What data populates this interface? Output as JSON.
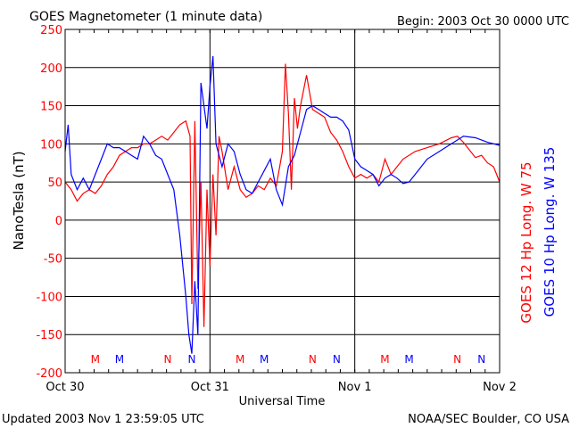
{
  "chart_data": {
    "type": "line",
    "title": "GOES Magnetometer (1 minute data)",
    "begin": "Begin:  2003 Oct 30 0000 UTC",
    "xlabel": "Universal Time",
    "ylabel": "NanoTesla (nT)",
    "ylim": [
      -200,
      250
    ],
    "xlim_hours": [
      0,
      72
    ],
    "yticks": [
      250,
      200,
      150,
      100,
      50,
      0,
      -50,
      -100,
      -150,
      -200
    ],
    "xticks": [
      {
        "h": 0,
        "label": "Oct 30"
      },
      {
        "h": 24,
        "label": "Oct 31"
      },
      {
        "h": 48,
        "label": "Nov 1"
      },
      {
        "h": 72,
        "label": "Nov 2"
      }
    ],
    "grid": true,
    "colors": {
      "goes12": "#ff0000",
      "goes10": "#0000ff",
      "axis_labels": "#ff0000"
    },
    "series": [
      {
        "name": "GOES 12 Hp",
        "legend": "GOES 12 Hp   Long. W 75",
        "color": "#ff0000",
        "points": [
          [
            0,
            50
          ],
          [
            1,
            40
          ],
          [
            2,
            25
          ],
          [
            3,
            35
          ],
          [
            4,
            40
          ],
          [
            5,
            35
          ],
          [
            6,
            45
          ],
          [
            7,
            60
          ],
          [
            8,
            70
          ],
          [
            9,
            85
          ],
          [
            10,
            90
          ],
          [
            11,
            95
          ],
          [
            12,
            95
          ],
          [
            13,
            100
          ],
          [
            14,
            100
          ],
          [
            15,
            105
          ],
          [
            16,
            110
          ],
          [
            17,
            105
          ],
          [
            18,
            115
          ],
          [
            19,
            125
          ],
          [
            20,
            130
          ],
          [
            20.7,
            110
          ],
          [
            21,
            -110
          ],
          [
            21.5,
            130
          ],
          [
            22,
            -90
          ],
          [
            22.5,
            50
          ],
          [
            23,
            -140
          ],
          [
            23.5,
            40
          ],
          [
            24,
            -60
          ],
          [
            24.5,
            60
          ],
          [
            25,
            -20
          ],
          [
            25.5,
            110
          ],
          [
            26,
            90
          ],
          [
            27,
            40
          ],
          [
            28,
            70
          ],
          [
            29,
            40
          ],
          [
            30,
            30
          ],
          [
            31,
            35
          ],
          [
            32,
            45
          ],
          [
            33,
            40
          ],
          [
            34,
            55
          ],
          [
            35,
            45
          ],
          [
            36,
            90
          ],
          [
            36.5,
            205
          ],
          [
            37,
            140
          ],
          [
            37.5,
            40
          ],
          [
            38,
            160
          ],
          [
            38.5,
            120
          ],
          [
            39,
            150
          ],
          [
            40,
            190
          ],
          [
            41,
            145
          ],
          [
            42,
            140
          ],
          [
            43,
            135
          ],
          [
            44,
            115
          ],
          [
            45,
            105
          ],
          [
            46,
            90
          ],
          [
            47,
            70
          ],
          [
            48,
            55
          ],
          [
            49,
            60
          ],
          [
            50,
            55
          ],
          [
            51,
            60
          ],
          [
            52,
            50
          ],
          [
            53,
            80
          ],
          [
            54,
            60
          ],
          [
            55,
            70
          ],
          [
            56,
            80
          ],
          [
            58,
            90
          ],
          [
            60,
            95
          ],
          [
            62,
            100
          ],
          [
            64,
            108
          ],
          [
            65,
            110
          ],
          [
            66,
            102
          ],
          [
            67,
            92
          ],
          [
            68,
            82
          ],
          [
            69,
            85
          ],
          [
            70,
            75
          ],
          [
            71,
            70
          ],
          [
            72,
            50
          ]
        ]
      },
      {
        "name": "GOES 10 Hp",
        "legend": "GOES 10 Hp   Long. W 135",
        "color": "#0000ff",
        "points": [
          [
            0,
            90
          ],
          [
            0.5,
            125
          ],
          [
            1,
            60
          ],
          [
            2,
            40
          ],
          [
            3,
            55
          ],
          [
            4,
            40
          ],
          [
            5,
            60
          ],
          [
            6,
            80
          ],
          [
            7,
            100
          ],
          [
            8,
            95
          ],
          [
            9,
            95
          ],
          [
            10,
            90
          ],
          [
            11,
            85
          ],
          [
            12,
            80
          ],
          [
            13,
            110
          ],
          [
            14,
            100
          ],
          [
            15,
            85
          ],
          [
            16,
            80
          ],
          [
            17,
            60
          ],
          [
            18,
            40
          ],
          [
            19,
            -20
          ],
          [
            20,
            -100
          ],
          [
            20.5,
            -150
          ],
          [
            21,
            -175
          ],
          [
            21.5,
            -80
          ],
          [
            22,
            -150
          ],
          [
            22.5,
            180
          ],
          [
            23,
            150
          ],
          [
            23.5,
            120
          ],
          [
            24,
            175
          ],
          [
            24.5,
            215
          ],
          [
            25,
            100
          ],
          [
            26,
            70
          ],
          [
            27,
            100
          ],
          [
            28,
            90
          ],
          [
            29,
            60
          ],
          [
            30,
            40
          ],
          [
            31,
            35
          ],
          [
            32,
            50
          ],
          [
            33,
            65
          ],
          [
            34,
            80
          ],
          [
            35,
            40
          ],
          [
            36,
            20
          ],
          [
            37,
            70
          ],
          [
            38,
            85
          ],
          [
            39,
            115
          ],
          [
            40,
            145
          ],
          [
            41,
            150
          ],
          [
            42,
            145
          ],
          [
            43,
            140
          ],
          [
            44,
            135
          ],
          [
            45,
            135
          ],
          [
            46,
            130
          ],
          [
            47,
            118
          ],
          [
            48,
            80
          ],
          [
            49,
            70
          ],
          [
            50,
            65
          ],
          [
            51,
            60
          ],
          [
            52,
            45
          ],
          [
            53,
            55
          ],
          [
            54,
            60
          ],
          [
            55,
            55
          ],
          [
            56,
            48
          ],
          [
            57,
            50
          ],
          [
            58,
            60
          ],
          [
            59,
            70
          ],
          [
            60,
            80
          ],
          [
            62,
            90
          ],
          [
            64,
            100
          ],
          [
            66,
            110
          ],
          [
            68,
            108
          ],
          [
            70,
            102
          ],
          [
            72,
            98
          ]
        ]
      }
    ],
    "markers": [
      {
        "h": 5,
        "label": "M",
        "color": "#ff0000"
      },
      {
        "h": 9,
        "label": "M",
        "color": "#0000ff"
      },
      {
        "h": 17,
        "label": "N",
        "color": "#ff0000"
      },
      {
        "h": 21,
        "label": "N",
        "color": "#0000ff"
      },
      {
        "h": 29,
        "label": "M",
        "color": "#ff0000"
      },
      {
        "h": 33,
        "label": "M",
        "color": "#0000ff"
      },
      {
        "h": 41,
        "label": "N",
        "color": "#ff0000"
      },
      {
        "h": 45,
        "label": "N",
        "color": "#0000ff"
      },
      {
        "h": 53,
        "label": "M",
        "color": "#ff0000"
      },
      {
        "h": 57,
        "label": "M",
        "color": "#0000ff"
      },
      {
        "h": 65,
        "label": "N",
        "color": "#ff0000"
      },
      {
        "h": 69,
        "label": "N",
        "color": "#0000ff"
      }
    ]
  },
  "footer": {
    "updated": "Updated 2003 Nov  1 23:59:05 UTC",
    "source": "NOAA/SEC Boulder, CO USA"
  }
}
